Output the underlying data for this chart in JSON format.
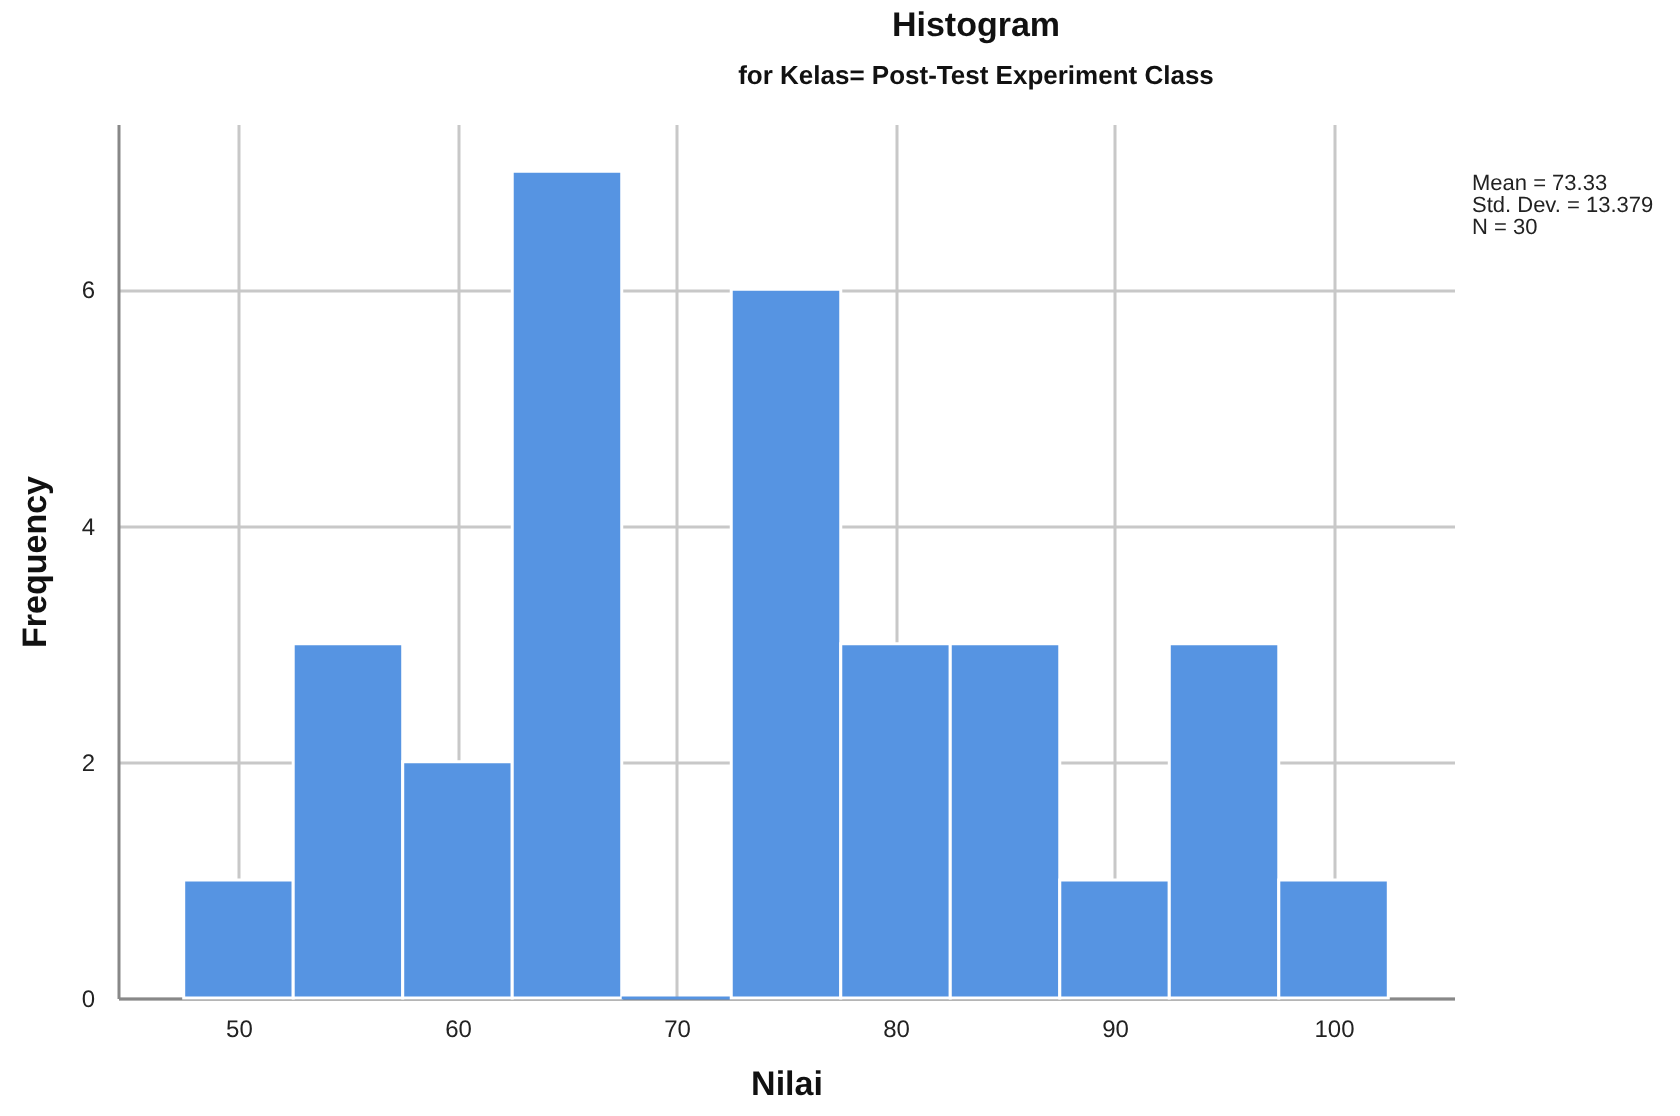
{
  "chart_data": {
    "type": "histogram",
    "title": "Histogram",
    "subtitle": "for Kelas= Post-Test Experiment Class",
    "xlabel": "Nilai",
    "ylabel": "Frequency",
    "bins": [
      47.5,
      52.5,
      57.5,
      62.5,
      67.5,
      72.5,
      77.5,
      82.5,
      87.5,
      92.5,
      97.5,
      102.5
    ],
    "values": [
      1,
      3,
      2,
      7,
      0,
      6,
      3,
      3,
      1,
      3,
      1
    ],
    "color": "#5694e2",
    "xlim": [
      44.5,
      105.5
    ],
    "xticks": [
      50,
      60,
      70,
      80,
      90,
      100
    ],
    "ylim": [
      0,
      7.4
    ],
    "yticks": [
      0,
      2,
      4,
      6
    ],
    "grid": true,
    "annotations": [
      "Mean = 73.33",
      "Std. Dev. = 13.379",
      "N = 30"
    ]
  }
}
